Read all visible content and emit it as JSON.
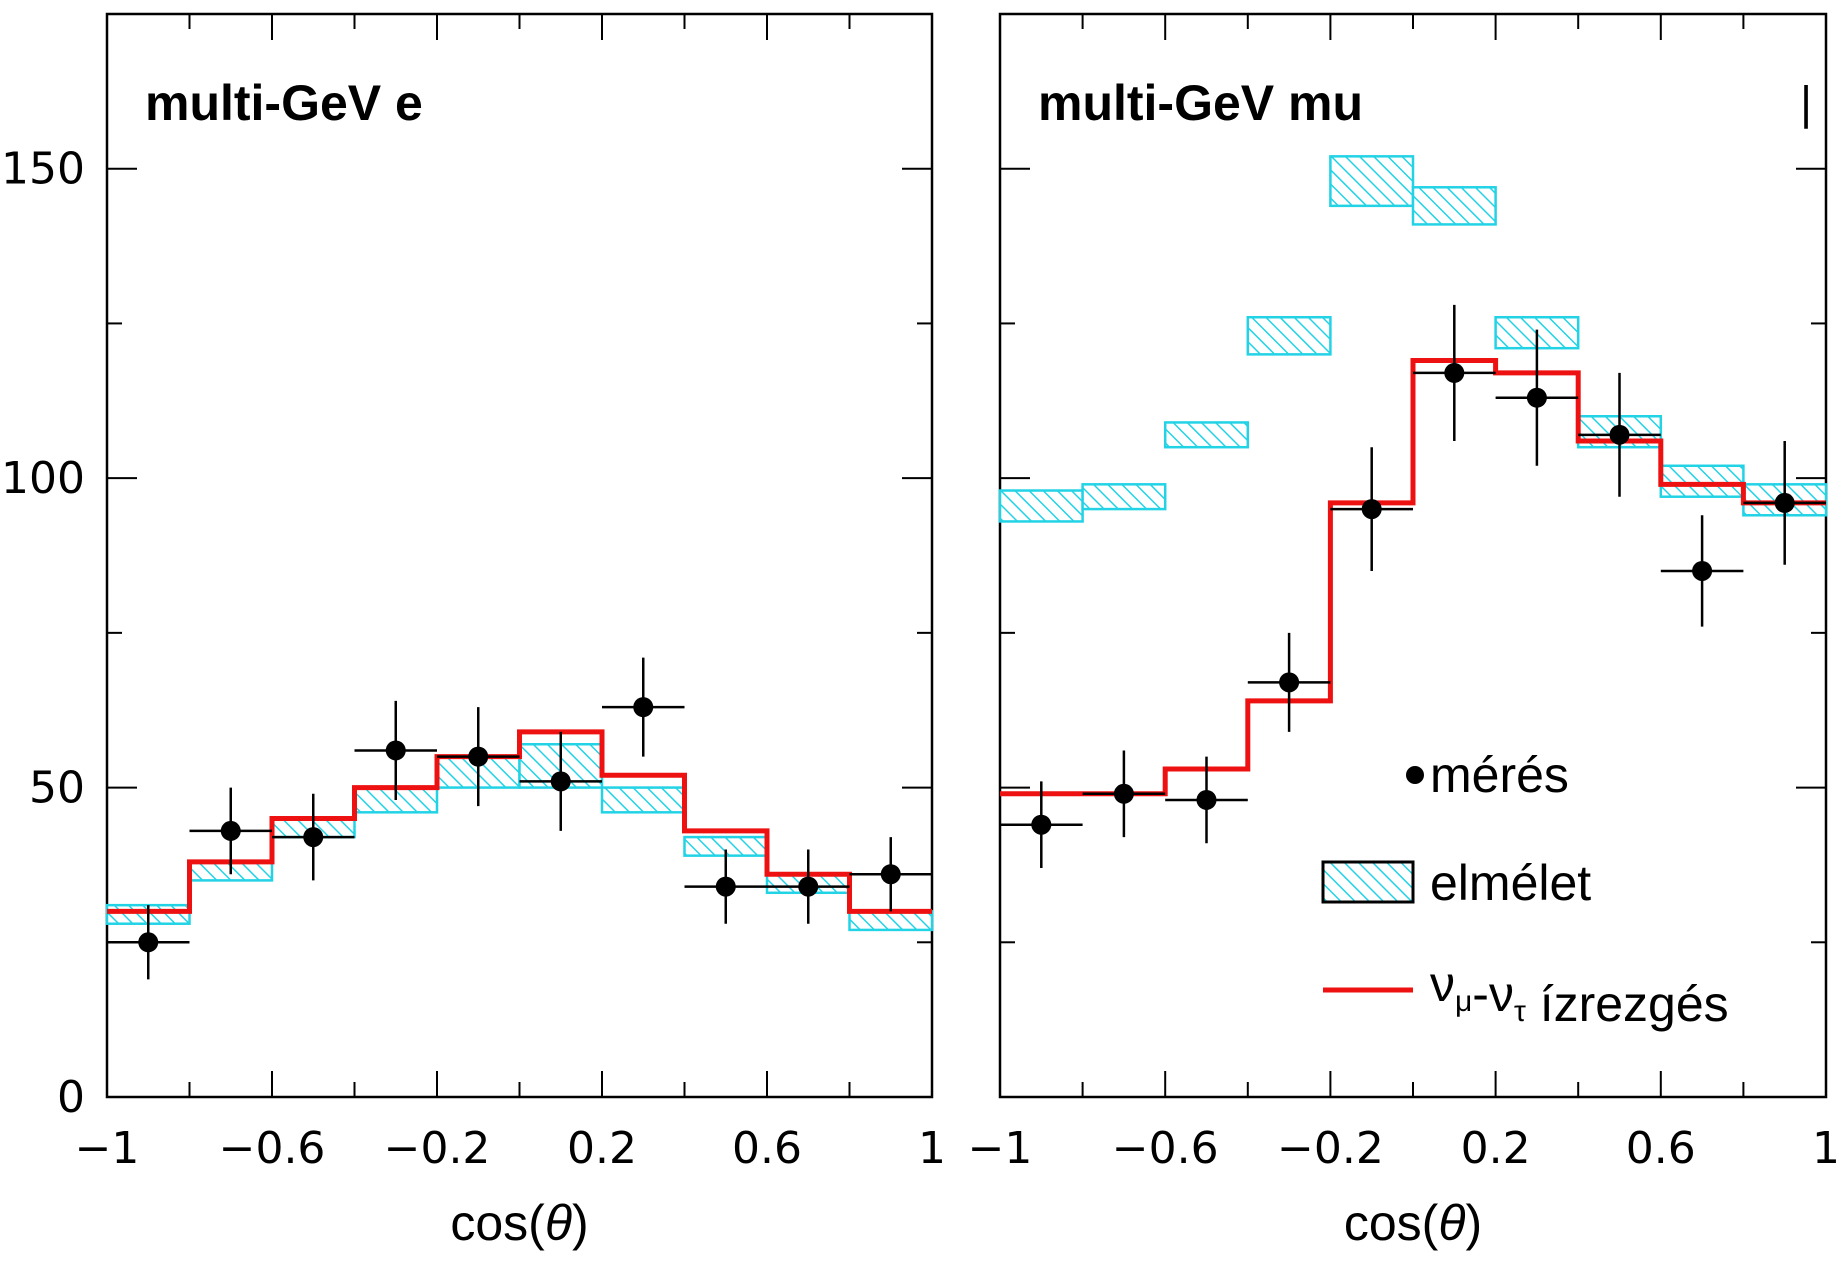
{
  "chart_data": [
    {
      "type": "line",
      "title": "multi-GeV e",
      "xlabel": "cos(θ)",
      "ylabel": "",
      "xlim": [
        -1,
        1
      ],
      "ylim": [
        0,
        175
      ],
      "xticks": [
        "−1",
        "−0.6",
        "−0.2",
        "0.2",
        "0.6",
        "1"
      ],
      "yticks": [
        "0",
        "50",
        "100",
        "150"
      ],
      "bin_edges": [
        -1,
        -0.8,
        -0.6,
        -0.4,
        -0.2,
        0,
        0.2,
        0.4,
        0.6,
        0.8,
        1
      ],
      "series": [
        {
          "name": "mérés",
          "kind": "points",
          "x": [
            -0.9,
            -0.7,
            -0.5,
            -0.3,
            -0.1,
            0.1,
            0.3,
            0.5,
            0.7,
            0.9
          ],
          "y": [
            25,
            43,
            42,
            56,
            55,
            51,
            63,
            34,
            34,
            36
          ],
          "yerr": [
            6,
            7,
            7,
            8,
            8,
            8,
            8,
            6,
            6,
            6
          ]
        },
        {
          "name": "elmélet",
          "kind": "band",
          "low": [
            28,
            35,
            42,
            46,
            50,
            50,
            46,
            39,
            33,
            27
          ],
          "high": [
            31,
            38,
            45,
            50,
            55,
            57,
            50,
            42,
            36,
            30
          ]
        },
        {
          "name": "νμ-ντ ízrezgés",
          "kind": "step",
          "values": [
            30,
            38,
            45,
            50,
            55,
            59,
            52,
            43,
            36,
            30
          ]
        }
      ]
    },
    {
      "type": "line",
      "title": "multi-GeV mu",
      "xlabel": "cos(θ)",
      "ylabel": "",
      "xlim": [
        -1,
        1
      ],
      "ylim": [
        0,
        175
      ],
      "xticks": [
        "−1",
        "−0.6",
        "−0.2",
        "0.2",
        "0.6",
        "1"
      ],
      "yticks": [],
      "bin_edges": [
        -1,
        -0.8,
        -0.6,
        -0.4,
        -0.2,
        0,
        0.2,
        0.4,
        0.6,
        0.8,
        1
      ],
      "series": [
        {
          "name": "mérés",
          "kind": "points",
          "x": [
            -0.9,
            -0.7,
            -0.5,
            -0.3,
            -0.1,
            0.1,
            0.3,
            0.5,
            0.7,
            0.9
          ],
          "y": [
            44,
            49,
            48,
            67,
            95,
            117,
            113,
            107,
            85,
            96
          ],
          "yerr": [
            7,
            7,
            7,
            8,
            10,
            11,
            11,
            10,
            9,
            10
          ]
        },
        {
          "name": "elmélet",
          "kind": "band",
          "low": [
            93,
            95,
            105,
            120,
            144,
            141,
            121,
            105,
            97,
            94
          ],
          "high": [
            98,
            99,
            109,
            126,
            152,
            147,
            126,
            110,
            102,
            99
          ]
        },
        {
          "name": "νμ-ντ ízrezgés",
          "kind": "step",
          "values": [
            49,
            49,
            53,
            64,
            96,
            119,
            117,
            106,
            99,
            96
          ]
        }
      ],
      "legend": {
        "position": "bottom-right",
        "entries": [
          {
            "label": "mérés",
            "kind": "points"
          },
          {
            "label": "elmélet",
            "kind": "band"
          },
          {
            "label": "νμ-ντ ízrezgés",
            "kind": "step",
            "nu": "ν",
            "sub1": "μ",
            "dash": "-",
            "sub2": "τ",
            "rest": " ízrezgés"
          }
        ]
      },
      "corner_mark": "|"
    }
  ],
  "colors": {
    "band_stroke": "#22d3e6",
    "band_hatch": "#22d3e6",
    "step": "#ee1111",
    "points": "#000000",
    "axis": "#000000"
  }
}
